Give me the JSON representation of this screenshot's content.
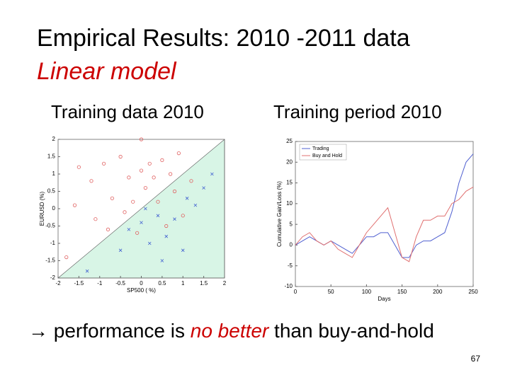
{
  "slide": {
    "title": "Empirical Results: 2010 -2011 data",
    "subtitle": "Linear model",
    "caption_left": "Training data 2010",
    "caption_right": "Training period 2010",
    "conclusion": [
      "→ performance is ",
      "no better",
      " than buy-and-hold"
    ],
    "page_number": "67"
  },
  "chart_data": [
    {
      "type": "scatter",
      "xlabel": "SP500 ( %)",
      "ylabel": "EURUSD (%)",
      "xlim": [
        -2,
        2
      ],
      "ylim": [
        -2,
        2
      ],
      "xticks": [
        -2,
        -1.5,
        -1,
        -0.5,
        0,
        0.5,
        1,
        1.5,
        2
      ],
      "yticks": [
        -2,
        -1.5,
        -1,
        -0.5,
        0,
        0.5,
        1,
        1.5,
        2
      ],
      "region_color": "#d8f5e6",
      "series": [
        {
          "color": "#e06060",
          "marker": "o",
          "x": [
            -1.5,
            -1.2,
            -0.9,
            -0.7,
            -0.5,
            -0.3,
            -0.2,
            0,
            0.1,
            0.2,
            0.3,
            0.5,
            0.7,
            0.9,
            -1.1,
            -0.8,
            -0.4,
            0.4,
            0.6,
            1.0,
            0.8,
            -1.6,
            -0.1,
            1.2,
            -1.8,
            0
          ],
          "values": [
            1.2,
            0.8,
            1.3,
            0.3,
            1.5,
            0.9,
            0.2,
            1.1,
            0.6,
            1.3,
            0.9,
            1.4,
            1.0,
            1.6,
            -0.3,
            -0.6,
            -0.1,
            0.2,
            -0.5,
            -0.2,
            0.5,
            0.1,
            -0.7,
            0.8,
            -1.4,
            2.0
          ]
        },
        {
          "color": "#4060d0",
          "marker": "x",
          "x": [
            -0.3,
            0,
            0.2,
            0.4,
            0.6,
            0.8,
            1.0,
            1.3,
            1.5,
            0.1,
            -0.5,
            -1.3,
            1.1,
            0.5,
            1.7
          ],
          "values": [
            -0.6,
            -0.4,
            -1.0,
            -0.2,
            -0.8,
            -0.3,
            -1.2,
            0.1,
            0.6,
            0.0,
            -1.2,
            -1.8,
            0.3,
            -1.5,
            1.0
          ]
        }
      ]
    },
    {
      "type": "line",
      "xlabel": "Days",
      "ylabel": "Cumulative Gain/Loss (%)",
      "xlim": [
        0,
        250
      ],
      "ylim": [
        -10,
        25
      ],
      "xticks": [
        0,
        50,
        100,
        150,
        200,
        250
      ],
      "yticks": [
        -10,
        -5,
        0,
        5,
        10,
        15,
        20,
        25
      ],
      "legend": "upper left",
      "x": [
        0,
        10,
        20,
        30,
        40,
        50,
        60,
        70,
        80,
        90,
        100,
        110,
        120,
        130,
        140,
        150,
        160,
        170,
        180,
        190,
        200,
        210,
        220,
        230,
        240,
        250
      ],
      "series": [
        {
          "name": "Trading",
          "color": "#5060d0",
          "values": [
            0,
            1,
            2,
            1,
            0,
            1,
            0,
            -1,
            -2,
            0,
            2,
            2,
            3,
            3,
            0,
            -3,
            -3,
            0,
            1,
            1,
            2,
            3,
            8,
            15,
            20,
            22
          ]
        },
        {
          "name": "Buy and Hold",
          "color": "#e07070",
          "values": [
            0,
            2,
            3,
            1,
            0,
            1,
            -1,
            -2,
            -3,
            0,
            3,
            5,
            7,
            9,
            3,
            -3,
            -4,
            2,
            6,
            6,
            7,
            7,
            10,
            11,
            13,
            14
          ]
        }
      ]
    }
  ]
}
